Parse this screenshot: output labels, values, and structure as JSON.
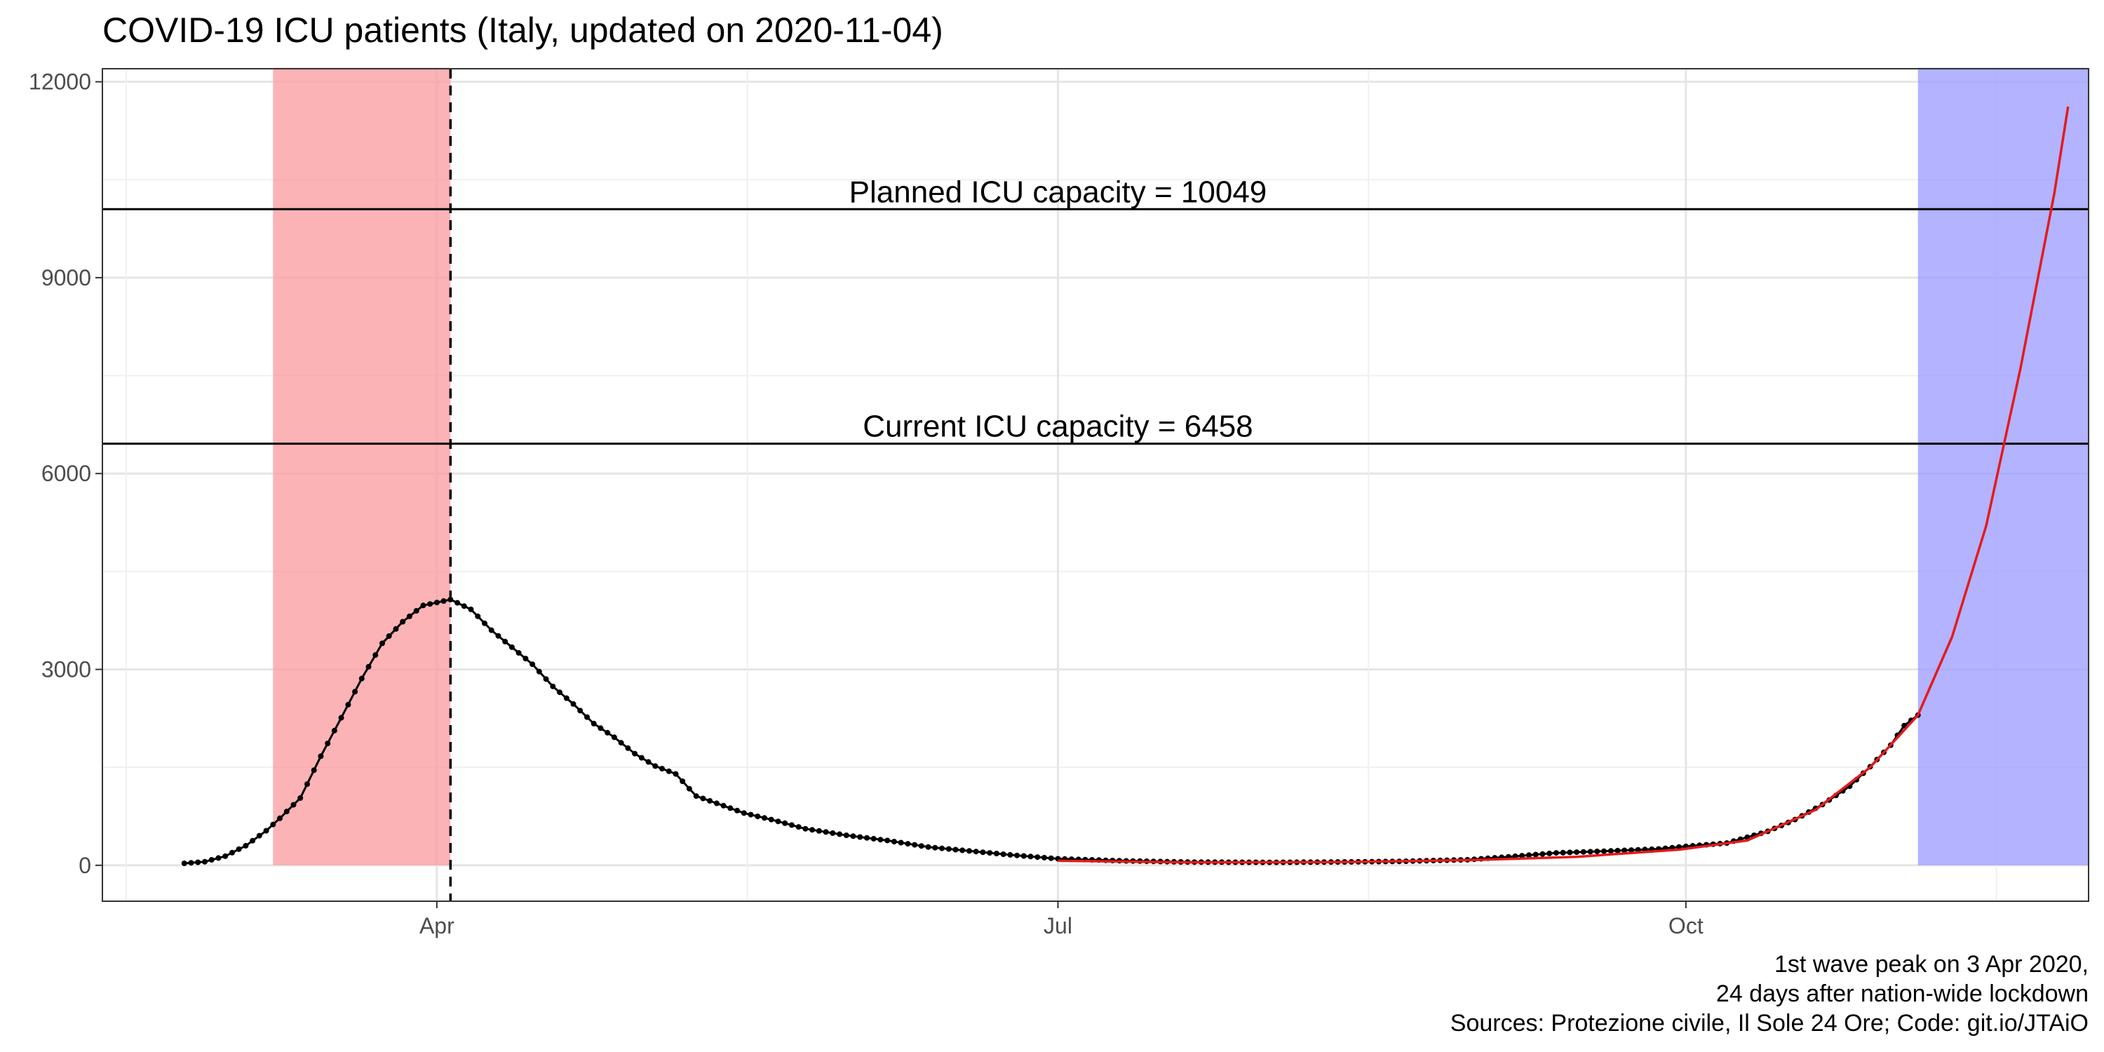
{
  "chart_data": {
    "type": "line",
    "title": "COVID-19 ICU patients (Italy, updated on 2020-11-04)",
    "xlabel": "",
    "ylabel": "",
    "x_axis": {
      "type": "date",
      "range": [
        "2020-02-12",
        "2020-11-29"
      ],
      "ticks": [
        {
          "date": "2020-04-01",
          "label": "Apr"
        },
        {
          "date": "2020-07-01",
          "label": "Jul"
        },
        {
          "date": "2020-10-01",
          "label": "Oct"
        }
      ]
    },
    "y_axis": {
      "range": [
        -550,
        12200
      ],
      "ticks": [
        0,
        3000,
        6000,
        9000,
        12000
      ],
      "tick_labels": [
        "0",
        "3000",
        "6000",
        "9000",
        "12000"
      ]
    },
    "grid": true,
    "shaded_regions": [
      {
        "from": "2020-03-08",
        "to": "2020-04-03",
        "color": "#fb9a9e"
      },
      {
        "from": "2020-11-04",
        "to": "2020-11-29",
        "color": "#9999ff"
      }
    ],
    "vertical_lines": [
      {
        "date": "2020-04-03",
        "style": "dashed"
      }
    ],
    "horizontal_lines": [
      {
        "value": 10049,
        "label": "Planned ICU capacity = 10049"
      },
      {
        "value": 6458,
        "label": "Current ICU capacity = 6458"
      }
    ],
    "series": [
      {
        "style": "points-line",
        "color": "#000000",
        "points": [
          [
            "2020-02-24",
            30
          ],
          [
            "2020-02-27",
            55
          ],
          [
            "2020-03-01",
            140
          ],
          [
            "2020-03-04",
            300
          ],
          [
            "2020-03-07",
            530
          ],
          [
            "2020-03-09",
            720
          ],
          [
            "2020-03-12",
            1030
          ],
          [
            "2020-03-15",
            1670
          ],
          [
            "2020-03-18",
            2260
          ],
          [
            "2020-03-21",
            2860
          ],
          [
            "2020-03-24",
            3400
          ],
          [
            "2020-03-27",
            3730
          ],
          [
            "2020-03-30",
            3980
          ],
          [
            "2020-04-03",
            4070
          ],
          [
            "2020-04-06",
            3920
          ],
          [
            "2020-04-09",
            3600
          ],
          [
            "2020-04-12",
            3340
          ],
          [
            "2020-04-15",
            3080
          ],
          [
            "2020-04-18",
            2740
          ],
          [
            "2020-04-21",
            2470
          ],
          [
            "2020-04-24",
            2170
          ],
          [
            "2020-04-27",
            1960
          ],
          [
            "2020-04-30",
            1710
          ],
          [
            "2020-05-03",
            1520
          ],
          [
            "2020-05-06",
            1400
          ],
          [
            "2020-05-09",
            1060
          ],
          [
            "2020-05-12",
            950
          ],
          [
            "2020-05-16",
            800
          ],
          [
            "2020-05-20",
            700
          ],
          [
            "2020-05-25",
            560
          ],
          [
            "2020-05-31",
            460
          ],
          [
            "2020-06-06",
            380
          ],
          [
            "2020-06-12",
            280
          ],
          [
            "2020-06-18",
            220
          ],
          [
            "2020-06-24",
            160
          ],
          [
            "2020-07-01",
            100
          ],
          [
            "2020-07-10",
            70
          ],
          [
            "2020-07-20",
            50
          ],
          [
            "2020-08-01",
            45
          ],
          [
            "2020-08-10",
            50
          ],
          [
            "2020-08-20",
            60
          ],
          [
            "2020-08-30",
            85
          ],
          [
            "2020-09-05",
            130
          ],
          [
            "2020-09-12",
            190
          ],
          [
            "2020-09-20",
            220
          ],
          [
            "2020-09-27",
            250
          ],
          [
            "2020-10-01",
            290
          ],
          [
            "2020-10-07",
            340
          ],
          [
            "2020-10-13",
            520
          ],
          [
            "2020-10-17",
            700
          ],
          [
            "2020-10-21",
            930
          ],
          [
            "2020-10-25",
            1210
          ],
          [
            "2020-10-28",
            1510
          ],
          [
            "2020-10-31",
            1840
          ],
          [
            "2020-11-02",
            2140
          ],
          [
            "2020-11-04",
            2300
          ]
        ]
      },
      {
        "style": "line",
        "color": "#e41a1c",
        "points": [
          [
            "2020-07-01",
            70
          ],
          [
            "2020-07-20",
            45
          ],
          [
            "2020-08-10",
            48
          ],
          [
            "2020-08-31",
            80
          ],
          [
            "2020-09-15",
            130
          ],
          [
            "2020-09-30",
            240
          ],
          [
            "2020-10-10",
            380
          ],
          [
            "2020-10-20",
            850
          ],
          [
            "2020-10-28",
            1500
          ],
          [
            "2020-11-04",
            2300
          ],
          [
            "2020-11-09",
            3500
          ],
          [
            "2020-11-14",
            5200
          ],
          [
            "2020-11-19",
            7600
          ],
          [
            "2020-11-24",
            10300
          ],
          [
            "2020-11-26",
            11620
          ]
        ]
      }
    ]
  },
  "captions": [
    "1st wave peak on 3 Apr 2020,",
    "24 days after nation-wide lockdown",
    "Sources: Protezione civile, Il Sole 24 Ore; Code: git.io/JTAiO"
  ]
}
